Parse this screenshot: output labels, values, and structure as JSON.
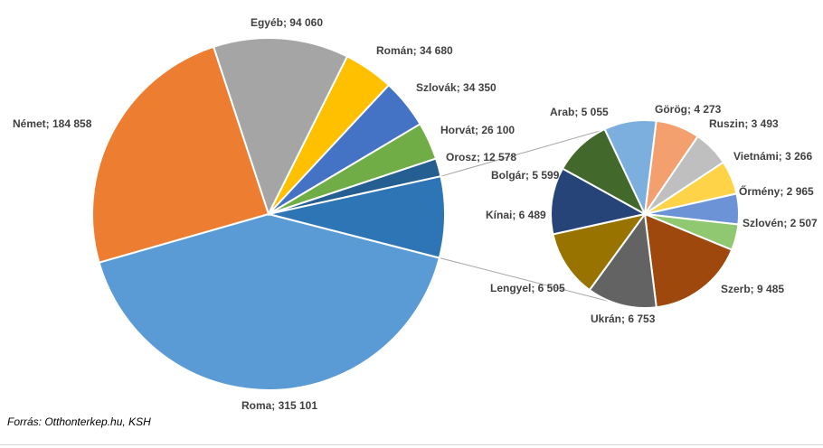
{
  "chart_data": {
    "type": "pie-of-pie",
    "source": "Forrás: Otthonterkep.hu, KSH",
    "main": [
      {
        "name": "Roma",
        "value": 315101,
        "label": "Roma; 315 101",
        "color": "#5b9bd5"
      },
      {
        "name": "Német",
        "value": 184858,
        "label": "Német; 184 858",
        "color": "#ed7d31"
      },
      {
        "name": "Egyéb",
        "value": 94060,
        "label": "Egyéb; 94 060",
        "color": "#a5a5a5"
      },
      {
        "name": "Román",
        "value": 34680,
        "label": "Román; 34 680",
        "color": "#ffc000"
      },
      {
        "name": "Szlovák",
        "value": 34350,
        "label": "Szlovák; 34 350",
        "color": "#4472c4"
      },
      {
        "name": "Horvát",
        "value": 26100,
        "label": "Horvát; 26 100",
        "color": "#70ad47"
      },
      {
        "name": "Orosz",
        "value": 12578,
        "label": "Orosz; 12 578",
        "color": "#255e91"
      }
    ],
    "secondary": [
      {
        "name": "Görög",
        "value": 4273,
        "label": "Görög; 4 273",
        "color": "#f4a06e"
      },
      {
        "name": "Ruszin",
        "value": 3493,
        "label": "Ruszin; 3 493",
        "color": "#bfbfbf"
      },
      {
        "name": "Vietnámi",
        "value": 3266,
        "label": "Vietnámi; 3 266",
        "color": "#ffd347"
      },
      {
        "name": "Örmény",
        "value": 2965,
        "label": "Őrmény; 2 965",
        "color": "#6b93d6"
      },
      {
        "name": "Szlovén",
        "value": 2507,
        "label": "Szlovén; 2 507",
        "color": "#8fc870"
      },
      {
        "name": "Szerb",
        "value": 9485,
        "label": "Szerb; 9 485",
        "color": "#9e480e"
      },
      {
        "name": "Ukrán",
        "value": 6753,
        "label": "Ukrán; 6 753",
        "color": "#636363"
      },
      {
        "name": "Lengyel",
        "value": 6505,
        "label": "Lengyel; 6 505",
        "color": "#997300"
      },
      {
        "name": "Kínai",
        "value": 6489,
        "label": "Kínai; 6 489",
        "color": "#264478"
      },
      {
        "name": "Bolgár",
        "value": 5599,
        "label": "Bolgár; 5 599",
        "color": "#43682b"
      },
      {
        "name": "Arab",
        "value": 5055,
        "label": "Arab; 5 055",
        "color": "#7cafdd"
      }
    ]
  }
}
